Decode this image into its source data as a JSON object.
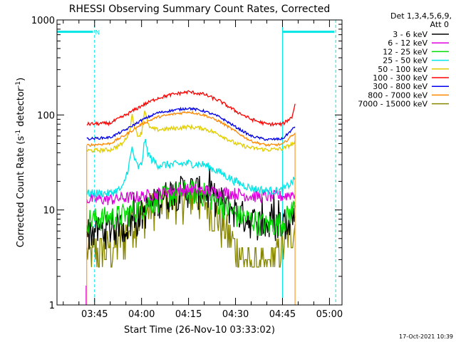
{
  "chart_data": {
    "type": "line",
    "title": "RHESSI Observing Summary Count Rates, Corrected",
    "xlabel": "Start Time (26-Nov-10 03:33:02)",
    "ylabel": "Corrected Count Rate (s",
    "ylabel_sup1": "-1",
    "ylabel_mid": " detector",
    "ylabel_end": ")",
    "y_scale": "log",
    "ylim": [
      1,
      1000
    ],
    "xlim_minutes_after_0330": [
      3.0,
      94.0
    ],
    "x_ticks": [
      {
        "label": "03:45",
        "min": 15
      },
      {
        "label": "04:00",
        "min": 30
      },
      {
        "label": "04:15",
        "min": 45
      },
      {
        "label": "04:30",
        "min": 60
      },
      {
        "label": "04:45",
        "min": 75
      },
      {
        "label": "05:00",
        "min": 90
      }
    ],
    "y_ticks": [
      {
        "label": "1",
        "value": 1
      },
      {
        "label": "10",
        "value": 10
      },
      {
        "label": "100",
        "value": 100
      },
      {
        "label": "1000",
        "value": 1000
      }
    ],
    "legend_header": [
      "Det 1,3,4,5,6,9,",
      "Att 0"
    ],
    "flag_label": "N",
    "timestamp": "17-Oct-2021 10:39",
    "data_start_min": 12.5,
    "data_end_min": 79.0,
    "series": [
      {
        "name": "3 - 6 keV",
        "color": "#000000",
        "noise": 0.4,
        "spikes": true,
        "points": [
          [
            12.5,
            6
          ],
          [
            20,
            6.5
          ],
          [
            25,
            7
          ],
          [
            28,
            8
          ],
          [
            31,
            10
          ],
          [
            35,
            13
          ],
          [
            40,
            16
          ],
          [
            45,
            17
          ],
          [
            50,
            16
          ],
          [
            55,
            13
          ],
          [
            60,
            10
          ],
          [
            65,
            8
          ],
          [
            70,
            7
          ],
          [
            75,
            7.5
          ],
          [
            79,
            9
          ]
        ]
      },
      {
        "name": "6 - 12 keV",
        "color": "#e000e0",
        "noise": 0.15,
        "points": [
          [
            12.5,
            13
          ],
          [
            20,
            13
          ],
          [
            30,
            14
          ],
          [
            40,
            16
          ],
          [
            45,
            16.5
          ],
          [
            50,
            16
          ],
          [
            60,
            15
          ],
          [
            65,
            14
          ],
          [
            70,
            14
          ],
          [
            75,
            14
          ],
          [
            79,
            15
          ]
        ]
      },
      {
        "name": "12 - 25 keV",
        "color": "#00dd00",
        "noise": 0.3,
        "points": [
          [
            12.5,
            8
          ],
          [
            20,
            8.5
          ],
          [
            25,
            9
          ],
          [
            30,
            11
          ],
          [
            35,
            13
          ],
          [
            40,
            15
          ],
          [
            45,
            16
          ],
          [
            50,
            15
          ],
          [
            55,
            12
          ],
          [
            60,
            9
          ],
          [
            65,
            8
          ],
          [
            70,
            7
          ],
          [
            75,
            7.5
          ],
          [
            79,
            11
          ]
        ]
      },
      {
        "name": "25 - 50 keV",
        "color": "#00e5e5",
        "noise": 0.1,
        "points": [
          [
            12.5,
            15
          ],
          [
            20,
            15
          ],
          [
            24,
            17
          ],
          [
            26,
            30
          ],
          [
            27,
            45
          ],
          [
            28,
            32
          ],
          [
            29,
            28
          ],
          [
            30,
            30
          ],
          [
            31,
            55
          ],
          [
            32,
            40
          ],
          [
            33,
            35
          ],
          [
            35,
            30
          ],
          [
            40,
            30
          ],
          [
            45,
            31
          ],
          [
            50,
            30
          ],
          [
            55,
            25
          ],
          [
            60,
            20
          ],
          [
            65,
            17
          ],
          [
            70,
            16
          ],
          [
            75,
            16
          ],
          [
            79,
            21
          ]
        ]
      },
      {
        "name": "50 - 100 keV",
        "color": "#e0cc00",
        "noise": 0.05,
        "points": [
          [
            12.5,
            42
          ],
          [
            20,
            43
          ],
          [
            24,
            50
          ],
          [
            26,
            65
          ],
          [
            27,
            100
          ],
          [
            28,
            70
          ],
          [
            29,
            60
          ],
          [
            30,
            65
          ],
          [
            31,
            115
          ],
          [
            32,
            80
          ],
          [
            33,
            72
          ],
          [
            35,
            70
          ],
          [
            40,
            72
          ],
          [
            45,
            75
          ],
          [
            50,
            72
          ],
          [
            55,
            62
          ],
          [
            60,
            50
          ],
          [
            65,
            45
          ],
          [
            70,
            43
          ],
          [
            75,
            44
          ],
          [
            79,
            51
          ]
        ]
      },
      {
        "name": "100 - 300 keV",
        "color": "#ff0000",
        "noise": 0.04,
        "points": [
          [
            12.5,
            80
          ],
          [
            20,
            82
          ],
          [
            25,
            100
          ],
          [
            30,
            125
          ],
          [
            35,
            150
          ],
          [
            40,
            165
          ],
          [
            45,
            175
          ],
          [
            50,
            165
          ],
          [
            55,
            140
          ],
          [
            60,
            110
          ],
          [
            65,
            90
          ],
          [
            70,
            80
          ],
          [
            75,
            80
          ],
          [
            78,
            95
          ],
          [
            79,
            130
          ]
        ]
      },
      {
        "name": "300 - 800 keV",
        "color": "#0000ee",
        "noise": 0.03,
        "points": [
          [
            12.5,
            56
          ],
          [
            20,
            58
          ],
          [
            25,
            70
          ],
          [
            30,
            88
          ],
          [
            35,
            105
          ],
          [
            40,
            112
          ],
          [
            45,
            118
          ],
          [
            50,
            110
          ],
          [
            55,
            95
          ],
          [
            60,
            75
          ],
          [
            65,
            60
          ],
          [
            70,
            55
          ],
          [
            75,
            56
          ],
          [
            79,
            75
          ]
        ]
      },
      {
        "name": "800 - 7000 keV",
        "color": "#ff8800",
        "noise": 0.03,
        "points": [
          [
            12.5,
            48
          ],
          [
            20,
            50
          ],
          [
            25,
            62
          ],
          [
            30,
            80
          ],
          [
            35,
            95
          ],
          [
            40,
            102
          ],
          [
            45,
            108
          ],
          [
            50,
            100
          ],
          [
            55,
            85
          ],
          [
            60,
            67
          ],
          [
            65,
            53
          ],
          [
            70,
            48
          ],
          [
            75,
            49
          ],
          [
            79,
            65
          ]
        ]
      },
      {
        "name": "7000 - 15000 keV",
        "color": "#888800",
        "noise": 0.5,
        "steppy": true,
        "points": [
          [
            12.5,
            3.5
          ],
          [
            20,
            4
          ],
          [
            25,
            6
          ],
          [
            30,
            9
          ],
          [
            35,
            12
          ],
          [
            40,
            14
          ],
          [
            45,
            15
          ],
          [
            50,
            13
          ],
          [
            55,
            8
          ],
          [
            60,
            4
          ],
          [
            65,
            2.5
          ],
          [
            70,
            2.5
          ],
          [
            75,
            4
          ],
          [
            79,
            7
          ]
        ]
      }
    ],
    "annotations": {
      "cyan_vlines_min": [
        3.0,
        15.0,
        75.0,
        92.0
      ],
      "flag_segments_min": [
        [
          3.0,
          14.5
        ],
        [
          75.0,
          91.5
        ]
      ],
      "flag_value": 750
    }
  }
}
